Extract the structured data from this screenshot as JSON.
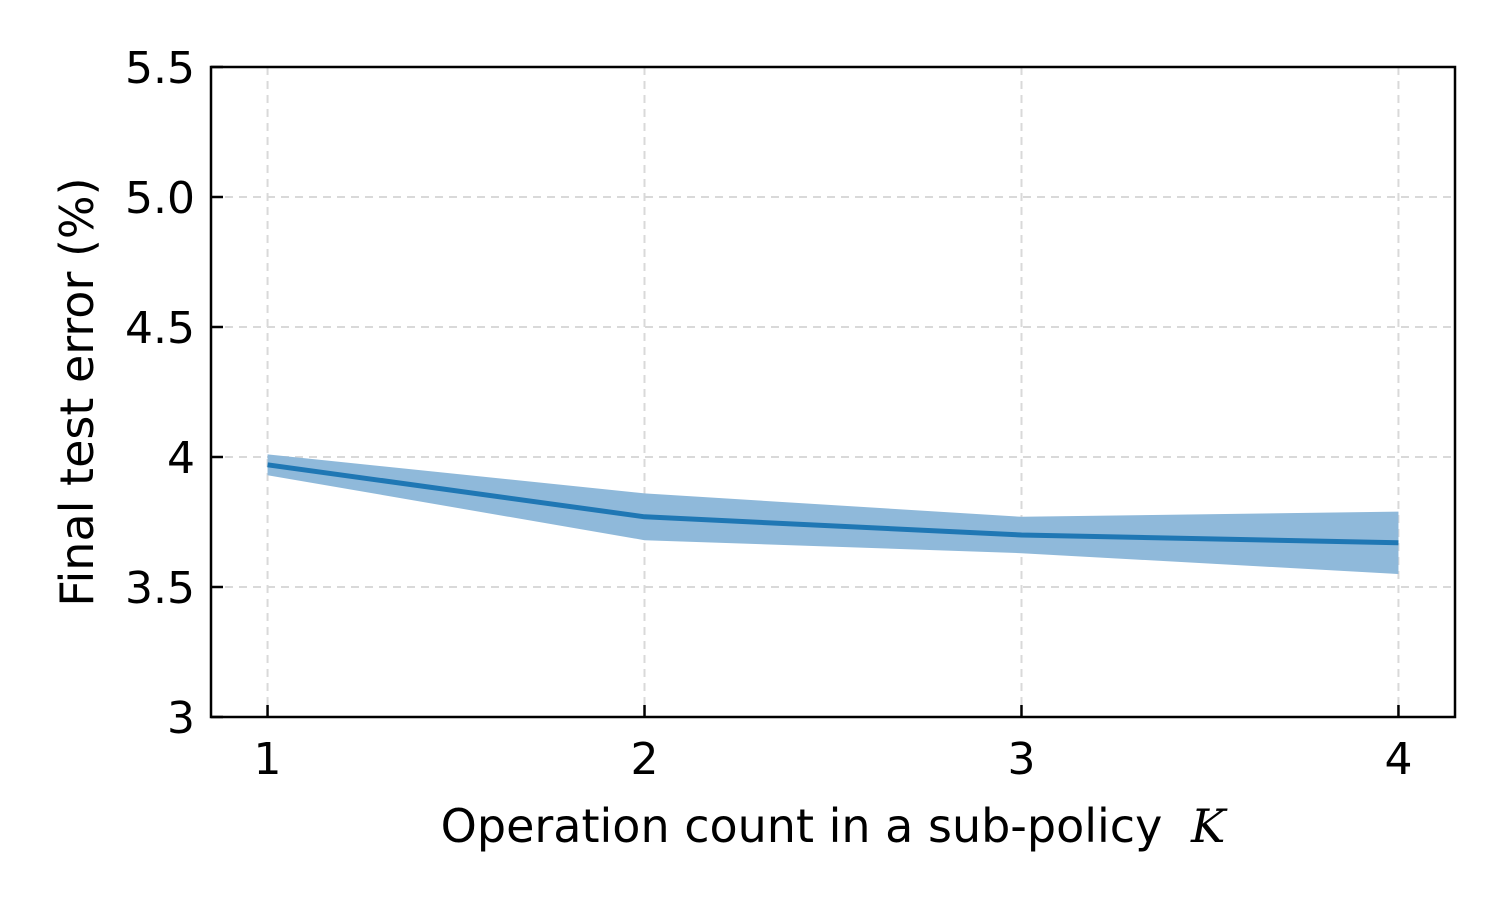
{
  "chart_data": {
    "type": "line",
    "title": "",
    "xlabel": "Operation count in a sub-policy",
    "xlabel_var": "K",
    "ylabel": "Final test error (%)",
    "x": [
      1,
      2,
      3,
      4
    ],
    "x_ticks": [
      1,
      2,
      3,
      4
    ],
    "x_tick_labels": [
      "1",
      "2",
      "3",
      "4"
    ],
    "y_ticks": [
      3,
      3.5,
      4,
      4.5,
      5,
      5.5
    ],
    "y_tick_labels": [
      "3",
      "3.5",
      "4",
      "4.5",
      "5.0",
      "5.5"
    ],
    "xlim": [
      0.85,
      4.15
    ],
    "ylim": [
      3,
      5.5
    ],
    "grid": true,
    "legend": "none",
    "series": [
      {
        "values": [
          3.97,
          3.77,
          3.7,
          3.67
        ],
        "lower": [
          3.93,
          3.68,
          3.63,
          3.55
        ],
        "upper": [
          4.01,
          3.86,
          3.77,
          3.79
        ],
        "color": "#1f77b4",
        "band_color": "#8fb9da"
      }
    ]
  }
}
